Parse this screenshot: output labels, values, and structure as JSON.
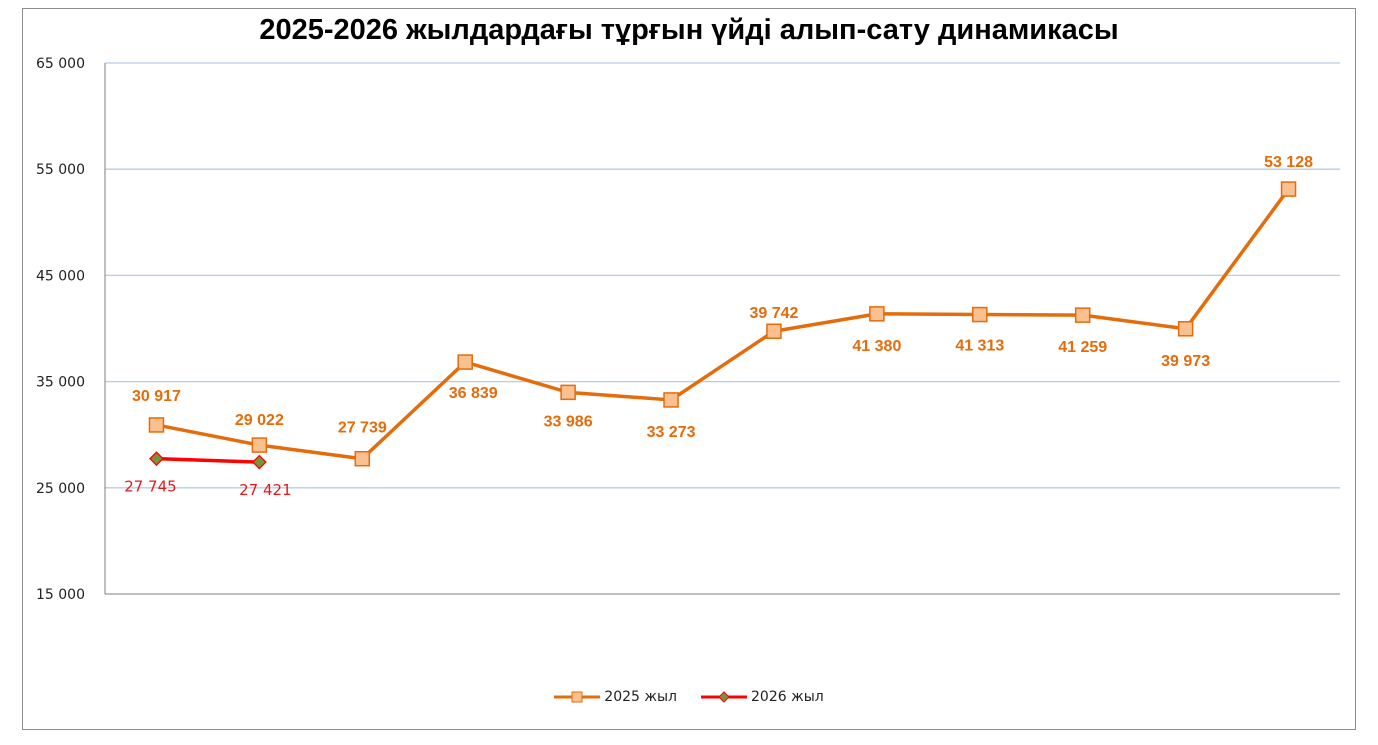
{
  "chart_data": {
    "type": "line",
    "title": "2025-2026 жылдардағы тұрғын үйді алып-сату динамикасы",
    "xlabel": "",
    "ylabel": "",
    "ylim": [
      15000,
      65000
    ],
    "yticks": [
      15000,
      25000,
      35000,
      45000,
      55000,
      65000
    ],
    "ytick_labels": [
      "15 000",
      "25 000",
      "35 000",
      "45 000",
      "55 000",
      "65 000"
    ],
    "grid": true,
    "legend_position": "bottom",
    "x_count": 12,
    "series": [
      {
        "name": "2025 жыл",
        "color": "#e46c0a",
        "marker": "square",
        "marker_fill": "#fac090",
        "values": [
          30917,
          29022,
          27739,
          36839,
          33986,
          33273,
          39742,
          41380,
          41313,
          41259,
          39973,
          53128
        ],
        "labels": [
          "30 917",
          "29 022",
          "27 739",
          "36 839",
          "33 986",
          "33 273",
          "39 742",
          "41 380",
          "41 313",
          "41 259",
          "39 973",
          "53 128"
        ]
      },
      {
        "name": "2026 жыл",
        "color": "#ff0000",
        "marker": "diamond",
        "marker_fill": "#77933c",
        "values": [
          27745,
          27421
        ],
        "labels": [
          "27 745",
          "27 421"
        ]
      }
    ]
  }
}
